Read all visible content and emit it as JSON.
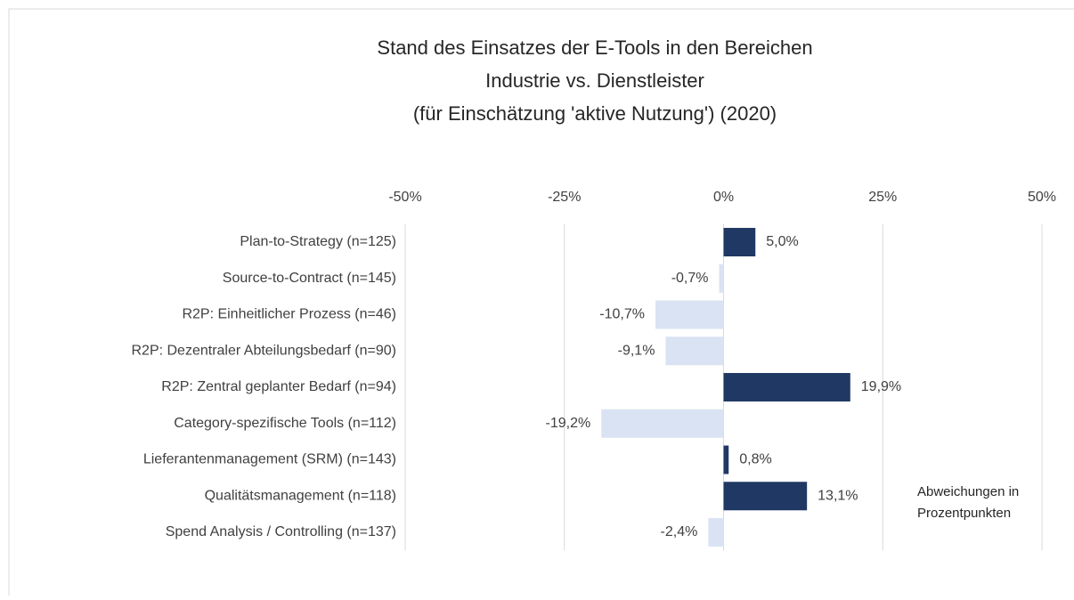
{
  "chart_data": {
    "type": "bar",
    "orientation": "horizontal",
    "title": [
      "Stand des Einsatzes der E-Tools in den Bereichen",
      "Industrie vs. Dienstleister",
      "(für Einschätzung 'aktive Nutzung') (2020)"
    ],
    "categories": [
      "Plan-to-Strategy (n=125)",
      "Source-to-Contract (n=145)",
      "R2P: Einheitlicher Prozess (n=46)",
      "R2P: Dezentraler Abteilungsbedarf (n=90)",
      "R2P: Zentral geplanter Bedarf (n=94)",
      "Category-spezifische Tools (n=112)",
      "Lieferantenmanagement (SRM) (n=143)",
      "Qualitätsmanagement (n=118)",
      "Spend Analysis / Controlling (n=137)"
    ],
    "values": [
      5.0,
      -0.7,
      -10.7,
      -9.1,
      19.9,
      -19.2,
      0.8,
      13.1,
      -2.4
    ],
    "value_labels": [
      "5,0%",
      "-0,7%",
      "-10,7%",
      "-9,1%",
      "19,9%",
      "-19,2%",
      "0,8%",
      "13,1%",
      "-2,4%"
    ],
    "colors": [
      "#203864",
      "#dae3f3",
      "#dae3f3",
      "#dae3f3",
      "#203864",
      "#dae3f3",
      "#203864",
      "#203864",
      "#dae3f3"
    ],
    "xlim": [
      -50,
      50
    ],
    "xticks": [
      {
        "value": -50,
        "label": "-50%"
      },
      {
        "value": -25,
        "label": "-25%"
      },
      {
        "value": 0,
        "label": "0%"
      },
      {
        "value": 25,
        "label": "25%"
      },
      {
        "value": 50,
        "label": "50%"
      }
    ],
    "grid": true,
    "annotation": [
      "Abweichungen in",
      "Prozentpunkten"
    ]
  }
}
